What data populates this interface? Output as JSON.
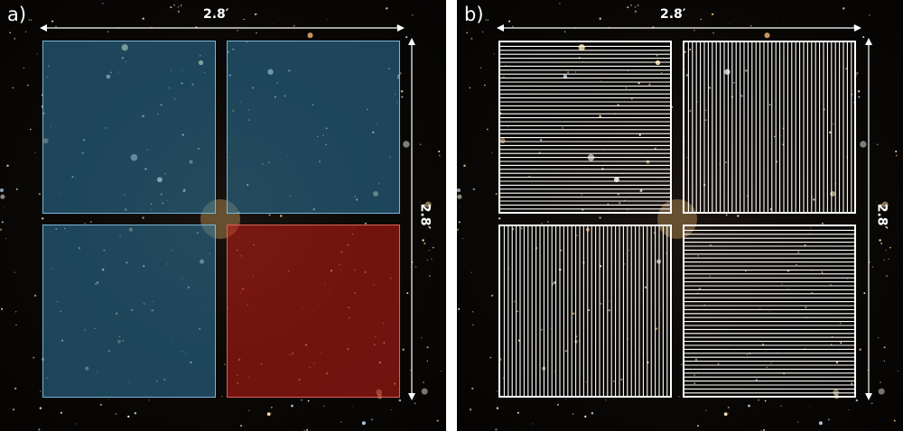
{
  "panels": [
    {
      "label": "a)",
      "width_label": "2.8′",
      "height_label": "2.8′"
    },
    {
      "label": "b)",
      "width_label": "2.8′",
      "height_label": "2.8′"
    }
  ],
  "colors": {
    "blue_quadrant": "#3078a0",
    "red_quadrant": "#be1e14",
    "slit_lines": "#ffffff",
    "sky": "#0b0906"
  },
  "quadrants_a": [
    "blue",
    "blue",
    "blue",
    "red"
  ],
  "quadrants_b": [
    "horizontal",
    "vertical",
    "vertical",
    "horizontal"
  ]
}
